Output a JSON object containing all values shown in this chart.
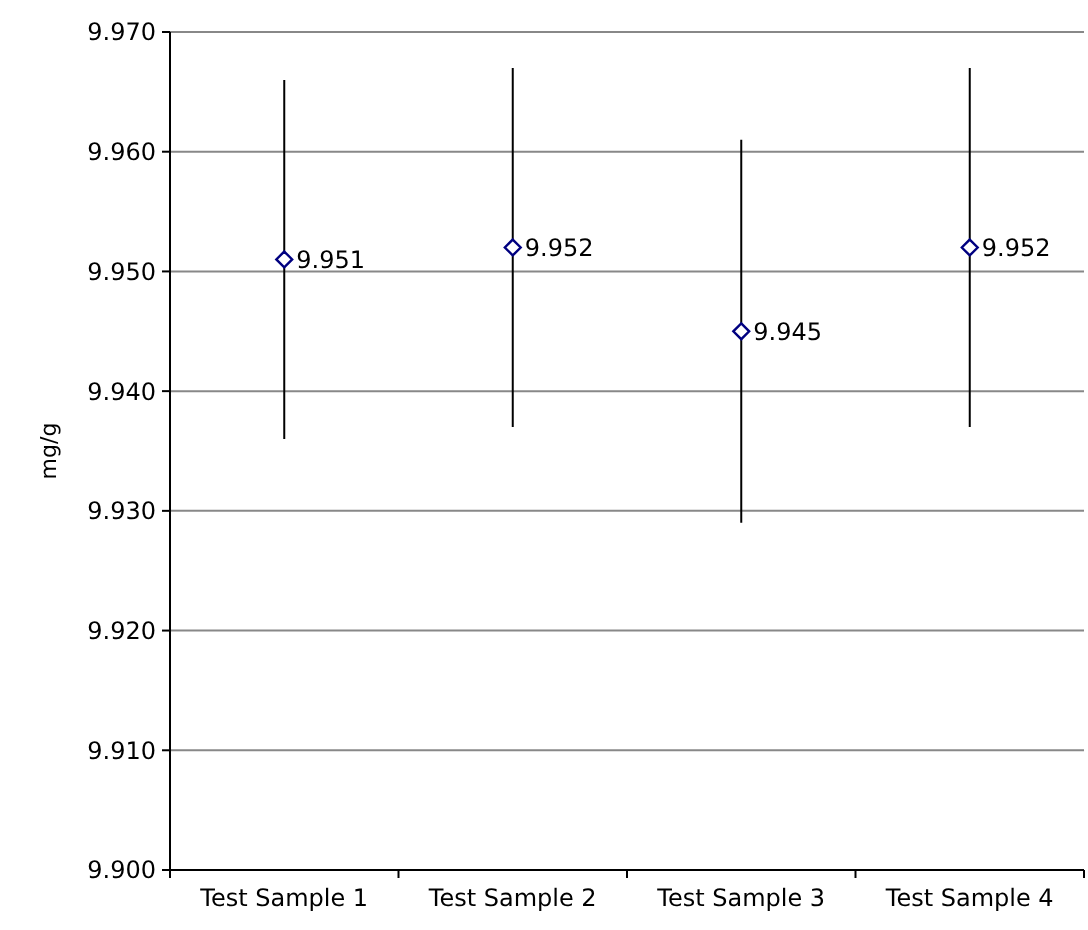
{
  "chart_data": {
    "type": "scatter",
    "ylabel": "mg/g",
    "categories": [
      "Test Sample 1",
      "Test Sample 2",
      "Test Sample 3",
      "Test Sample 4"
    ],
    "series": [
      {
        "color": "#000080",
        "values": [
          9.951,
          9.952,
          9.945,
          9.952
        ],
        "errors": [
          0.015,
          0.015,
          0.016,
          0.015
        ]
      }
    ],
    "ylim": [
      9.9,
      9.97
    ],
    "yticks": [
      {
        "value": 9.9,
        "label": "9.900"
      },
      {
        "value": 9.91,
        "label": "9.910"
      },
      {
        "value": 9.92,
        "label": "9.920"
      },
      {
        "value": 9.93,
        "label": "9.930"
      },
      {
        "value": 9.94,
        "label": "9.940"
      },
      {
        "value": 9.95,
        "label": "9.950"
      },
      {
        "value": 9.96,
        "label": "9.960"
      },
      {
        "value": 9.97,
        "label": "9.970"
      }
    ],
    "grid": "y",
    "marker": "diamond",
    "data_labels": true
  }
}
